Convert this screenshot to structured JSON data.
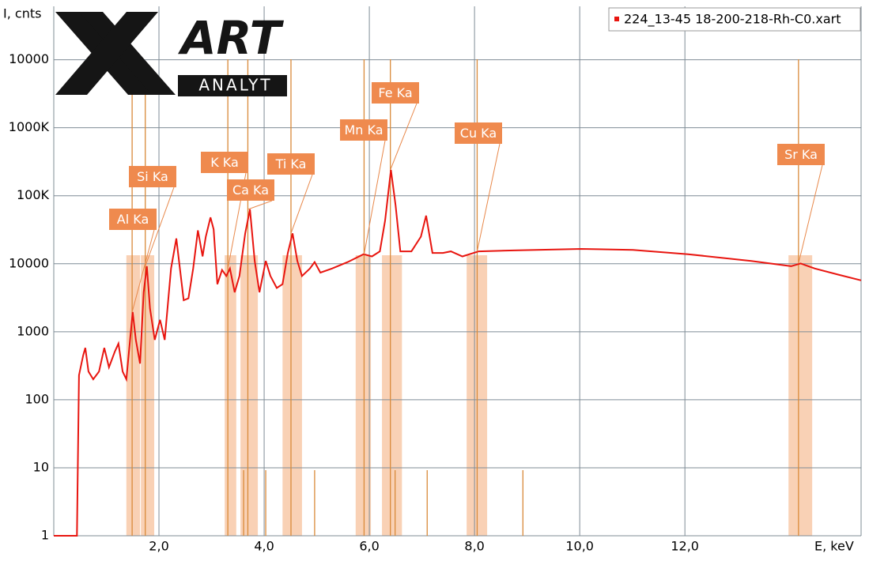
{
  "chart_data": {
    "type": "line",
    "y_label": "I, cnts",
    "x_label": "E, keV",
    "logo": {
      "text": "ART",
      "sub": "ANALYT"
    },
    "log_y": true,
    "grid": true,
    "legend": "top-right",
    "xlim": [
      0,
      15.35
    ],
    "ylim": [
      1,
      61000000
    ],
    "xticks": [
      {
        "value": 2,
        "label": "2,0"
      },
      {
        "value": 4,
        "label": "4,0"
      },
      {
        "value": 6,
        "label": "6,0"
      },
      {
        "value": 8,
        "label": "8,0"
      },
      {
        "value": 10,
        "label": "10,0"
      },
      {
        "value": 12,
        "label": "12,0"
      }
    ],
    "yticks": [
      1,
      10,
      100,
      1000,
      10000,
      {
        "value": 100000,
        "label": "100K"
      },
      {
        "value": 1000000,
        "label": "1000K"
      },
      {
        "value": 10000000,
        "label": "10000"
      }
    ],
    "series": [
      {
        "name": "224_13-45 18-200-218-Rh-C0.xart",
        "color": "#e8150f",
        "x": [
          0,
          0.44,
          0.48,
          0.56,
          0.6,
          0.66,
          0.75,
          0.86,
          0.96,
          1.05,
          1.16,
          1.23,
          1.31,
          1.38,
          1.5,
          1.56,
          1.64,
          1.71,
          1.77,
          1.83,
          1.92,
          2.02,
          2.11,
          2.23,
          2.33,
          2.47,
          2.56,
          2.65,
          2.74,
          2.83,
          2.89,
          2.98,
          3.04,
          3.11,
          3.2,
          3.28,
          3.35,
          3.44,
          3.53,
          3.64,
          3.73,
          3.82,
          3.91,
          4.03,
          4.12,
          4.24,
          4.35,
          4.45,
          4.54,
          4.63,
          4.72,
          4.87,
          4.96,
          5.07,
          5.29,
          5.59,
          5.89,
          6.05,
          6.2,
          6.3,
          6.41,
          6.5,
          6.59,
          6.8,
          6.98,
          7.08,
          7.2,
          7.4,
          7.55,
          7.77,
          8.08,
          8.75,
          10.03,
          11.01,
          12.06,
          13.26,
          14.02,
          14.2,
          14.47,
          14.92,
          15.35
        ],
        "values": [
          1,
          1,
          230,
          450,
          580,
          260,
          200,
          260,
          580,
          300,
          510,
          670,
          260,
          200,
          1950,
          760,
          340,
          3800,
          9200,
          2200,
          760,
          1500,
          760,
          8500,
          23500,
          2900,
          3100,
          8500,
          31000,
          12800,
          24800,
          48000,
          32000,
          5000,
          8100,
          6600,
          8500,
          3800,
          6600,
          28000,
          63000,
          11000,
          3800,
          11000,
          6600,
          4400,
          5000,
          14400,
          28000,
          11000,
          6600,
          8500,
          10600,
          7400,
          8500,
          10600,
          13800,
          12800,
          15200,
          43000,
          240000,
          72000,
          15200,
          15200,
          25000,
          51000,
          14400,
          14400,
          15200,
          12800,
          15200,
          15700,
          16500,
          16000,
          13800,
          11000,
          9200,
          10100,
          8500,
          6900,
          5700
        ]
      }
    ],
    "markers": [
      {
        "label": "Al Ka",
        "energy": 1.49,
        "roi": [
          1.38,
          1.64
        ]
      },
      {
        "label": "Si Ka",
        "energy": 1.74,
        "roi": [
          1.656,
          1.91
        ]
      },
      {
        "label": "K Ka",
        "energy": 3.31,
        "roi": [
          3.25,
          3.47
        ]
      },
      {
        "label": "Ca Ka",
        "energy": 3.69,
        "roi": [
          3.55,
          3.88
        ]
      },
      {
        "label": "Ti Ka",
        "energy": 4.51,
        "roi": [
          4.35,
          4.72
        ]
      },
      {
        "label": "Mn Ka",
        "energy": 5.9,
        "roi": [
          5.74,
          6.03
        ]
      },
      {
        "label": "Fe Ka",
        "energy": 6.4,
        "roi": [
          6.24,
          6.62
        ]
      },
      {
        "label": "Cu Ka",
        "energy": 8.05,
        "roi": [
          7.85,
          8.24
        ]
      },
      {
        "label": "Sr Ka",
        "energy": 14.16,
        "roi": [
          13.97,
          14.42
        ]
      }
    ],
    "minor_lines": [
      3.61,
      4.03,
      4.96,
      6.49,
      7.1,
      8.92
    ]
  }
}
